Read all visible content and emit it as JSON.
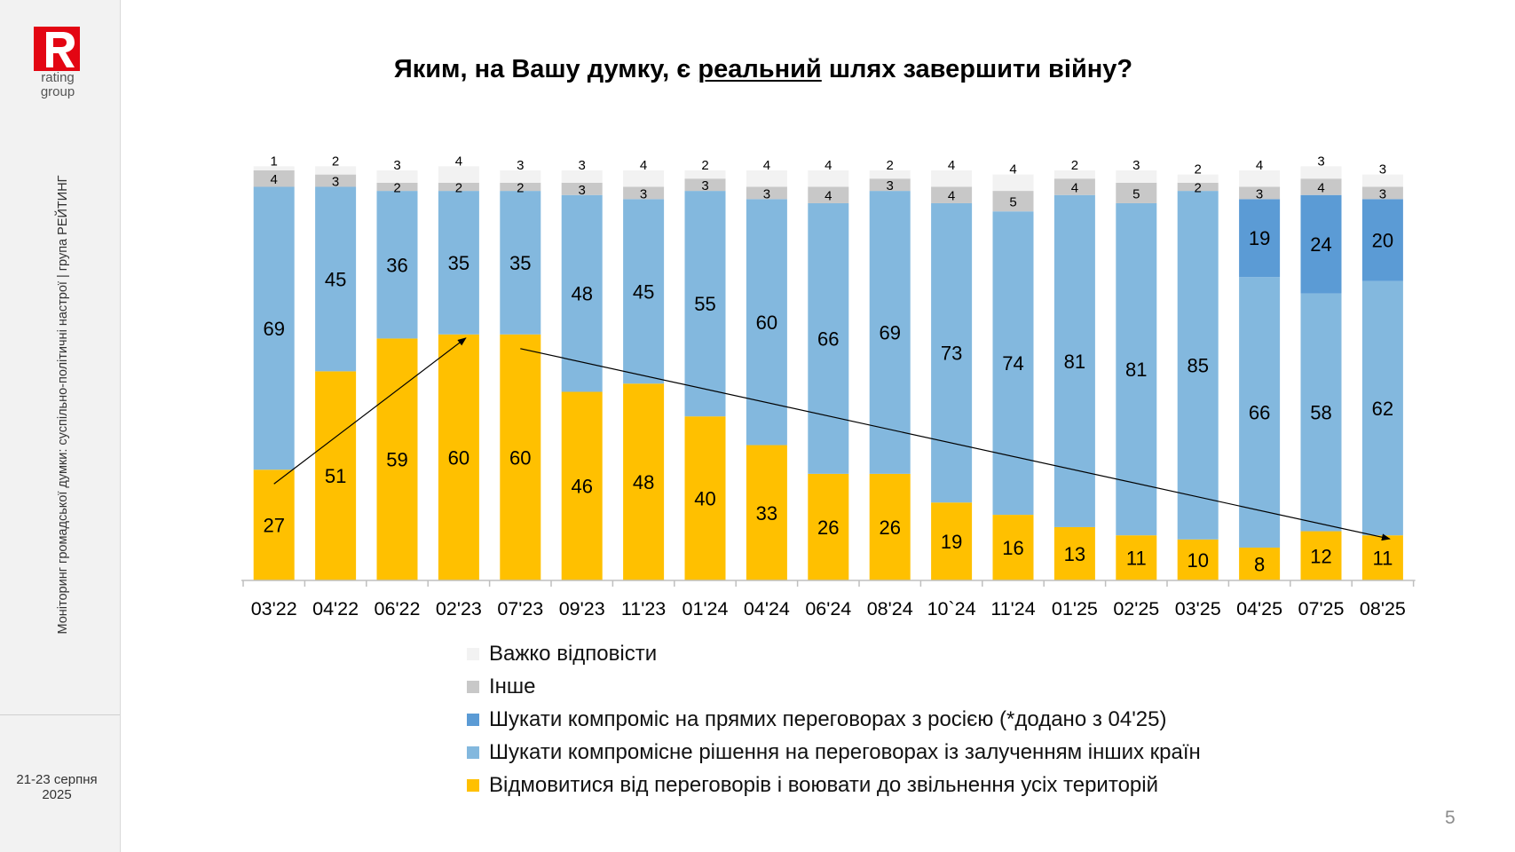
{
  "sidebar": {
    "logo_text_1": "rating",
    "logo_text_2": "group",
    "vertical_text": "Моніторинг громадської думки: суспільно-політичні настрої | група РЕЙТИНГ",
    "date_line1": "21-23 серпня",
    "date_line2": "2025"
  },
  "title": {
    "before": "Яким, на Вашу думку, є ",
    "underlined": "реальний",
    "after": " шлях завершити війну?"
  },
  "page_number": "5",
  "colors": {
    "fight": "#ffc000",
    "compromise_others": "#83b8de",
    "compromise_direct": "#5b9bd5",
    "other": "#c8c8c8",
    "hard": "#f2f2f2"
  },
  "chart_data": {
    "type": "bar",
    "stacked": true,
    "categories": [
      "03'22",
      "04'22",
      "06'22",
      "02'23",
      "07'23",
      "09'23",
      "11'23",
      "01'24",
      "04'24",
      "06'24",
      "08'24",
      "10`24",
      "11'24",
      "01'25",
      "02'25",
      "03'25",
      "04'25",
      "07'25",
      "08'25"
    ],
    "series": [
      {
        "name": "Відмовитися від переговорів і воювати до звільнення усіх територій",
        "color": "#ffc000",
        "values": [
          27,
          51,
          59,
          60,
          60,
          46,
          48,
          40,
          33,
          26,
          26,
          19,
          16,
          13,
          11,
          10,
          8,
          12,
          11
        ]
      },
      {
        "name": "Шукати компромісне рішення на переговорах із залученням інших країн",
        "color": "#83b8de",
        "values": [
          69,
          45,
          36,
          35,
          35,
          48,
          45,
          55,
          60,
          66,
          69,
          73,
          74,
          81,
          81,
          85,
          66,
          58,
          62
        ]
      },
      {
        "name": "Шукати компроміс на прямих переговорах з росією (*додано з 04'25)",
        "color": "#5b9bd5",
        "values": [
          null,
          null,
          null,
          null,
          null,
          null,
          null,
          null,
          null,
          null,
          null,
          null,
          null,
          null,
          null,
          null,
          19,
          24,
          20
        ]
      },
      {
        "name": "Інше",
        "color": "#c8c8c8",
        "values": [
          4,
          3,
          2,
          2,
          2,
          3,
          3,
          3,
          3,
          4,
          3,
          4,
          5,
          4,
          5,
          2,
          3,
          4,
          3
        ]
      },
      {
        "name": "Важко відповісти",
        "color": "#f2f2f2",
        "values": [
          1,
          2,
          3,
          4,
          3,
          3,
          4,
          2,
          4,
          4,
          2,
          4,
          4,
          2,
          3,
          2,
          4,
          3,
          3
        ]
      }
    ],
    "legend_position": "bottom",
    "legend_order": [
      4,
      3,
      2,
      1,
      0
    ],
    "grid": false,
    "ylim": [
      0,
      100
    ],
    "trend_arrows": [
      {
        "from_category": "03'22",
        "from_value": 27,
        "to_category": "02'23",
        "to_value": 60
      },
      {
        "from_category": "07'23",
        "from_value": 60,
        "to_category": "08'25",
        "to_value": 11
      }
    ]
  }
}
